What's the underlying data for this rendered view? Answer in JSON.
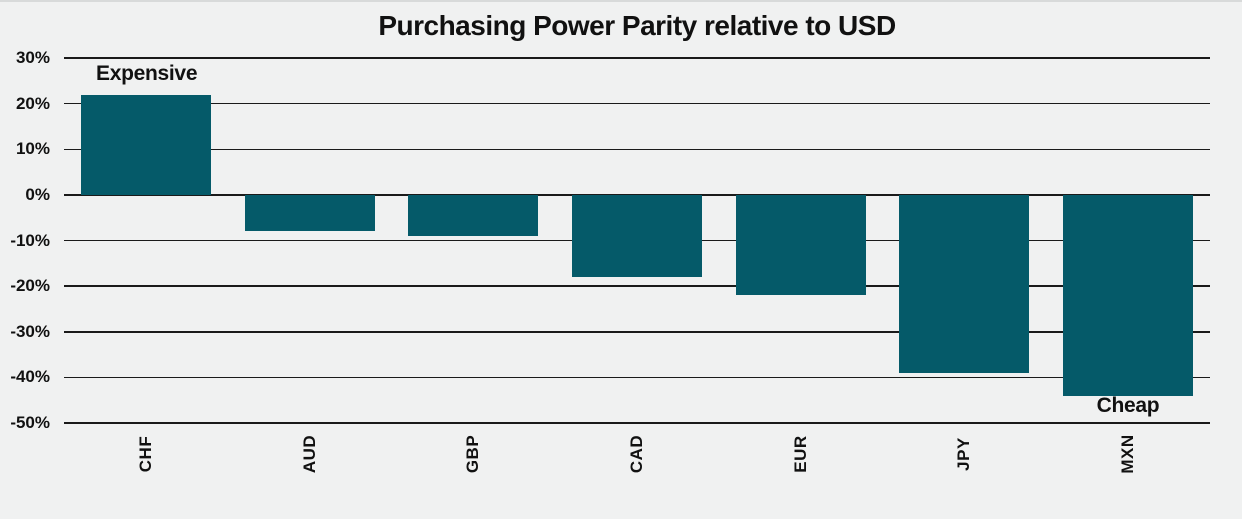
{
  "chart_data": {
    "type": "bar",
    "title": "Purchasing Power Parity relative to USD",
    "categories": [
      "CHF",
      "AUD",
      "GBP",
      "CAD",
      "EUR",
      "JPY",
      "MXN"
    ],
    "values": [
      22,
      -8,
      -9,
      -18,
      -22,
      -39,
      -44
    ],
    "unit": "%",
    "ylim": [
      -50,
      30
    ],
    "ytick_step": 10,
    "ytick_labels": [
      "30%",
      "20%",
      "10%",
      "0%",
      "-10%",
      "-20%",
      "-30%",
      "-40%",
      "-50%"
    ],
    "grid": true,
    "legend": "none",
    "bar_color": "#055a69",
    "background_color": "#f0f1f1",
    "gridline_color": "#1a1a1a",
    "annotations": [
      {
        "text": "Expensive",
        "anchor": "above-first-bar"
      },
      {
        "text": "Cheap",
        "anchor": "below-last-bar"
      }
    ]
  }
}
